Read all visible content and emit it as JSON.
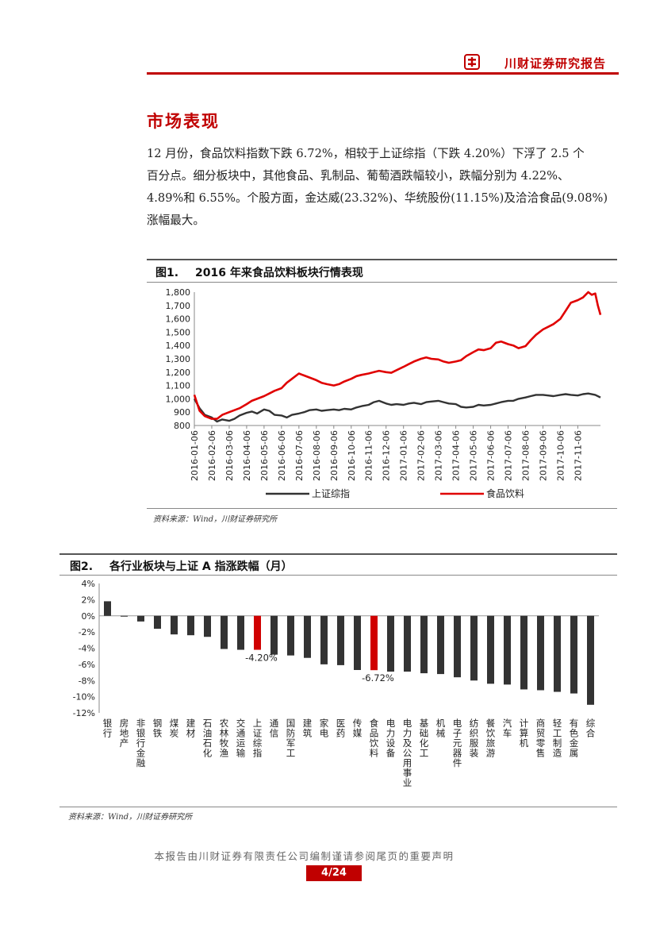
{
  "header": {
    "title": "川财证券研究报告"
  },
  "section": {
    "title": "市场表现",
    "lines": [
      "12 月份，食品饮料指数下跌 6.72%，相较于上证综指（下跌 4.20%）下浮了 2.5 个",
      "百分点。细分板块中，其他食品、乳制品、葡萄酒跌幅较小，跌幅分别为 4.22%、",
      "4.89%和 6.55%。个股方面，金达威(23.32%)、华统股份(11.15%)及洽洽食品(9.08%)",
      "涨幅最大。"
    ]
  },
  "figure1": {
    "num": "图1.",
    "title": "2016 年来食品饮料板块行情表现",
    "source": "资料来源：Wind，川财证券研究所",
    "chart_data": {
      "type": "line",
      "title": "2016 年来食品饮料板块行情表现",
      "ylim": [
        800,
        1800
      ],
      "y_ticks": [
        "800",
        "900",
        "1,000",
        "1,100",
        "1,200",
        "1,300",
        "1,400",
        "1,500",
        "1,600",
        "1,700",
        "1,800"
      ],
      "categories": [
        "2016-01-06",
        "2016-02-06",
        "2016-03-06",
        "2016-04-06",
        "2016-05-06",
        "2016-06-06",
        "2016-07-06",
        "2016-08-06",
        "2016-09-06",
        "2016-10-06",
        "2016-11-06",
        "2016-12-06",
        "2017-01-06",
        "2017-02-06",
        "2017-03-06",
        "2017-04-06",
        "2017-05-06",
        "2017-06-06",
        "2017-07-06",
        "2017-08-06",
        "2017-09-06",
        "2017-10-06",
        "2017-11-06"
      ],
      "x_end_index": 23.3,
      "series": [
        {
          "name": "上证综指",
          "color": "#333333",
          "x": [
            0,
            0.3,
            0.6,
            1,
            1.3,
            1.6,
            2,
            2.3,
            2.6,
            3,
            3.3,
            3.6,
            4,
            4.3,
            4.6,
            5,
            5.3,
            5.6,
            6,
            6.3,
            6.6,
            7,
            7.3,
            7.6,
            8,
            8.3,
            8.6,
            9,
            9.3,
            9.6,
            10,
            10.3,
            10.6,
            11,
            11.3,
            11.6,
            12,
            12.3,
            12.6,
            13,
            13.3,
            13.6,
            14,
            14.3,
            14.6,
            15,
            15.3,
            15.6,
            16,
            16.3,
            16.6,
            17,
            17.3,
            17.6,
            18,
            18.3,
            18.6,
            19,
            19.3,
            19.6,
            20,
            20.3,
            20.6,
            21,
            21.3,
            21.6,
            22,
            22.3,
            22.6,
            23,
            23.3
          ],
          "values": [
            1000,
            930,
            880,
            860,
            830,
            845,
            835,
            850,
            875,
            895,
            905,
            890,
            920,
            910,
            880,
            875,
            860,
            880,
            890,
            900,
            915,
            920,
            910,
            915,
            920,
            915,
            925,
            920,
            935,
            945,
            955,
            975,
            985,
            965,
            955,
            960,
            955,
            965,
            970,
            960,
            975,
            980,
            985,
            975,
            965,
            960,
            940,
            935,
            940,
            955,
            950,
            955,
            965,
            975,
            985,
            985,
            1000,
            1010,
            1020,
            1030,
            1030,
            1025,
            1020,
            1030,
            1035,
            1030,
            1025,
            1035,
            1040,
            1030,
            1010
          ]
        },
        {
          "name": "食品饮料",
          "color": "#e00000",
          "x": [
            0,
            0.3,
            0.6,
            1,
            1.3,
            1.6,
            2,
            2.3,
            2.6,
            3,
            3.3,
            3.6,
            4,
            4.3,
            4.6,
            5,
            5.3,
            5.6,
            6,
            6.3,
            6.6,
            7,
            7.3,
            7.6,
            8,
            8.3,
            8.6,
            9,
            9.3,
            9.6,
            10,
            10.3,
            10.6,
            11,
            11.3,
            11.6,
            12,
            12.3,
            12.6,
            13,
            13.3,
            13.6,
            14,
            14.3,
            14.6,
            15,
            15.3,
            15.6,
            16,
            16.3,
            16.6,
            17,
            17.3,
            17.6,
            18,
            18.3,
            18.6,
            19,
            19.3,
            19.6,
            20,
            20.3,
            20.6,
            21,
            21.3,
            21.6,
            22,
            22.3,
            22.6,
            22.8,
            23,
            23.15,
            23.3
          ],
          "values": [
            1030,
            910,
            870,
            850,
            850,
            880,
            900,
            915,
            930,
            960,
            985,
            1000,
            1020,
            1040,
            1060,
            1080,
            1120,
            1150,
            1190,
            1175,
            1160,
            1140,
            1120,
            1110,
            1100,
            1110,
            1130,
            1150,
            1170,
            1180,
            1190,
            1200,
            1210,
            1200,
            1195,
            1215,
            1240,
            1260,
            1280,
            1300,
            1310,
            1300,
            1295,
            1280,
            1270,
            1280,
            1290,
            1320,
            1350,
            1370,
            1365,
            1380,
            1420,
            1430,
            1410,
            1400,
            1380,
            1395,
            1440,
            1480,
            1520,
            1540,
            1560,
            1600,
            1660,
            1720,
            1740,
            1760,
            1800,
            1780,
            1790,
            1700,
            1630
          ]
        }
      ]
    }
  },
  "figure2": {
    "num": "图2.",
    "title": "各行业板块与上证 A 指涨跌幅（月）",
    "source": "资料来源：Wind，川财证券研究所",
    "chart_data": {
      "type": "bar",
      "title": "各行业板块与上证 A 指涨跌幅（月）",
      "ylim": [
        -12,
        4
      ],
      "y_ticks": [
        "4%",
        "2%",
        "0%",
        "-2%",
        "-4%",
        "-6%",
        "-8%",
        "-10%",
        "-12%"
      ],
      "categories": [
        "银行",
        "房地产",
        "非银行金融",
        "钢铁",
        "煤炭",
        "建材",
        "石油石化",
        "农林牧渔",
        "交通运输",
        "上证综指",
        "通信",
        "国防军工",
        "建筑",
        "家电",
        "医药",
        "传媒",
        "食品饮料",
        "电力设备",
        "电力及公用事业",
        "基础化工",
        "机械",
        "电子元器件",
        "纺织服装",
        "餐饮旅游",
        "汽车",
        "计算机",
        "商贸零售",
        "轻工制造",
        "有色金属",
        "综合"
      ],
      "values": [
        1.8,
        -0.1,
        -0.7,
        -1.6,
        -2.3,
        -2.4,
        -2.6,
        -4.1,
        -4.2,
        -4.2,
        -4.8,
        -4.9,
        -5.2,
        -6.0,
        -6.1,
        -6.7,
        -6.72,
        -6.9,
        -6.9,
        -7.1,
        -7.2,
        -7.6,
        -8.0,
        -8.4,
        -8.5,
        -9.1,
        -9.2,
        -9.4,
        -9.6,
        -11.0
      ],
      "highlight": [
        "上证综指",
        "食品饮料"
      ],
      "bar_color": "#333333",
      "highlight_color": "#d00000",
      "data_labels": [
        {
          "category": "上证综指",
          "text": "-4.20%"
        },
        {
          "category": "食品饮料",
          "text": "-6.72%"
        }
      ]
    }
  },
  "footer": {
    "text": "本报告由川财证券有限责任公司编制谨请参阅尾页的重要声明",
    "page": "4/24"
  }
}
